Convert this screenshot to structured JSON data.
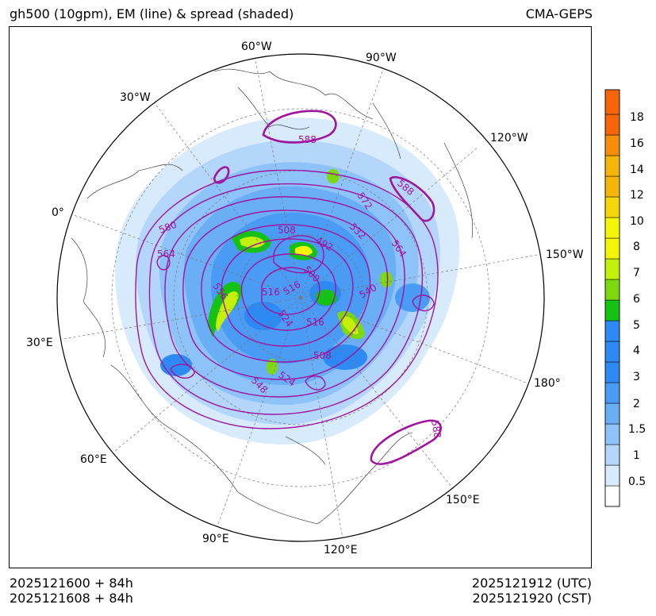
{
  "header": {
    "title": "gh500 (10gpm), EM (line) & spread (shaded)",
    "model": "CMA-GEPS"
  },
  "footer": {
    "init_utc": "2025121600 + 84h",
    "init_cst": "2025121608 + 84h",
    "valid_utc": "2025121912 (UTC)",
    "valid_cst": "2025121920 (CST)"
  },
  "map": {
    "projection": "north polar stereographic",
    "longitude_labels": [
      "60°W",
      "90°W",
      "30°W",
      "120°W",
      "0°",
      "150°W",
      "30°E",
      "180°",
      "60°E",
      "150°E",
      "90°E",
      "120°E"
    ],
    "contour_labels": [
      "588",
      "588",
      "580",
      "564",
      "508",
      "492",
      "500",
      "572",
      "532",
      "564",
      "556",
      "516",
      "516",
      "540",
      "524",
      "516",
      "508",
      "548",
      "524",
      "588"
    ],
    "contour_color": "#a0149f"
  },
  "colorbar": {
    "levels": [
      "0.5",
      "1",
      "1.5",
      "2",
      "3",
      "4",
      "5",
      "6",
      "7",
      "8",
      "10",
      "12",
      "14",
      "16",
      "18"
    ],
    "colors": [
      "#ffffff",
      "#d8ebfd",
      "#b4d6fb",
      "#8dc3f9",
      "#6aaef6",
      "#4a9bf4",
      "#2d8af2",
      "#13c213",
      "#7dd80f",
      "#c4ef0a",
      "#f5f50a",
      "#f5d60a",
      "#f5b50a",
      "#f58e0a",
      "#f5660a",
      "#f54a0a"
    ]
  }
}
